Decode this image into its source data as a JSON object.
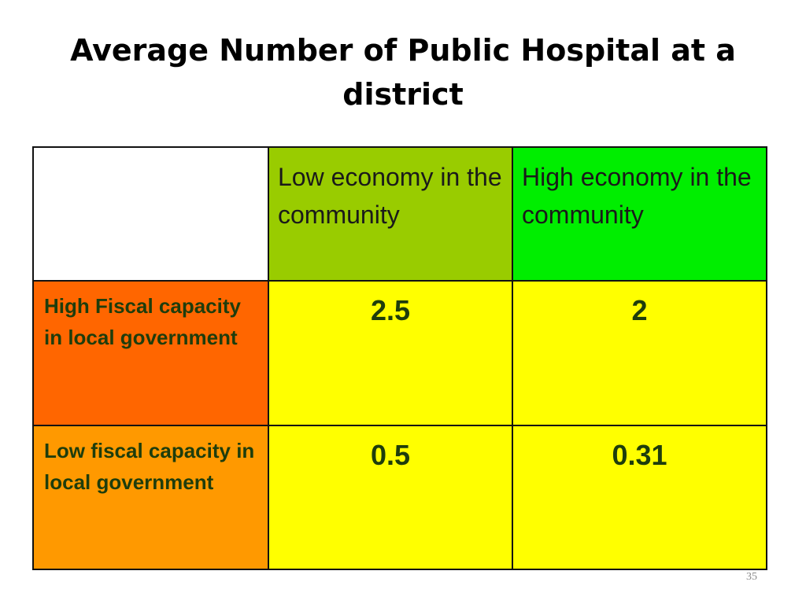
{
  "slide": {
    "title": "Average Number of Public Hospital at a district",
    "page_number": "35"
  },
  "table": {
    "corner": "",
    "column_headers": [
      {
        "label": "Low economy in the community",
        "color": "#99cc00"
      },
      {
        "label": "High economy in the community",
        "color": "#00ee00"
      }
    ],
    "rows": [
      {
        "label": "High Fiscal capacity in local government",
        "color": "#ff6600",
        "values": [
          "2.5",
          "2"
        ]
      },
      {
        "label": "Low fiscal capacity in local government",
        "color": "#ff9900",
        "values": [
          "0.5",
          "0.31"
        ]
      }
    ],
    "value_cell_color": "#ffff00"
  }
}
